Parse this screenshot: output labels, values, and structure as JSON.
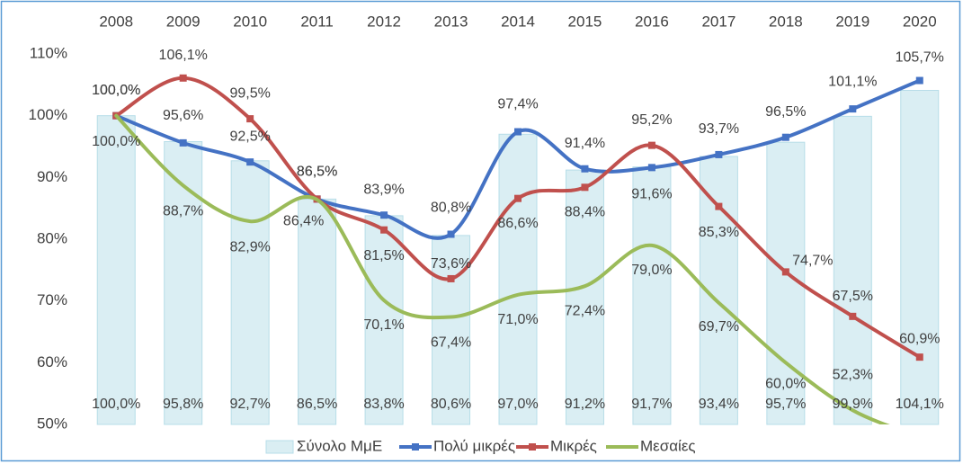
{
  "chart_data": {
    "type": "bar-line",
    "categories": [
      "2008",
      "2009",
      "2010",
      "2011",
      "2012",
      "2013",
      "2014",
      "2015",
      "2016",
      "2017",
      "2018",
      "2019",
      "2020"
    ],
    "ylim": [
      50,
      110
    ],
    "yticks": [
      {
        "value": 50,
        "label": "50%"
      },
      {
        "value": 60,
        "label": "60%"
      },
      {
        "value": 70,
        "label": "70%"
      },
      {
        "value": 80,
        "label": "80%"
      },
      {
        "value": 90,
        "label": "90%"
      },
      {
        "value": 100,
        "label": "100%"
      },
      {
        "value": 110,
        "label": "110%"
      }
    ],
    "legend": "bottom",
    "series": [
      {
        "name": "Σύνολο ΜμΕ",
        "type": "bar",
        "color": "#daeef3",
        "values": [
          100.0,
          95.8,
          92.7,
          86.5,
          83.8,
          80.6,
          97.0,
          91.2,
          91.7,
          93.4,
          95.7,
          99.9,
          104.1
        ],
        "value_labels": [
          "100,0%",
          "95,8%",
          "92,7%",
          "86,5%",
          "83,8%",
          "80,6%",
          "97,0%",
          "91,2%",
          "91,7%",
          "93,4%",
          "95,7%",
          "99,9%",
          "104,1%"
        ]
      },
      {
        "name": "Πολύ μικρές",
        "type": "line",
        "color": "#4472c4",
        "values": [
          100.0,
          95.6,
          92.5,
          86.5,
          83.9,
          80.8,
          97.4,
          91.4,
          91.6,
          93.7,
          96.5,
          101.1,
          105.7
        ],
        "value_labels": [
          "100,0%",
          "95,6%",
          "92,5%",
          "86,5%",
          "83,9%",
          "80,8%",
          "97,4%",
          "91,4%",
          "91,6%",
          "93,7%",
          "96,5%",
          "101,1%",
          "105,7%"
        ]
      },
      {
        "name": "Μικρές",
        "type": "line",
        "color": "#c0504d",
        "values": [
          100.0,
          106.1,
          99.5,
          86.5,
          81.5,
          73.6,
          86.6,
          88.4,
          95.2,
          85.3,
          74.7,
          67.5,
          60.9
        ],
        "value_labels": [
          "100,0%",
          "106,1%",
          "99,5%",
          "86,5%",
          "81,5%",
          "73,6%",
          "86,6%",
          "88,4%",
          "95,2%",
          "85,3%",
          "74,7%",
          "67,5%",
          "60,9%"
        ]
      },
      {
        "name": "Μεσαίες",
        "type": "line",
        "color": "#9bbb59",
        "values": [
          100.0,
          88.7,
          82.9,
          86.4,
          70.1,
          67.4,
          71.0,
          72.4,
          79.0,
          69.7,
          60.0,
          52.3,
          48.0
        ],
        "value_labels": [
          "100,0%",
          "88,7%",
          "82,9%",
          "86,4%",
          "70,1%",
          "67,4%",
          "71,0%",
          "72,4%",
          "79,0%",
          "69,7%",
          "60,0%",
          "52,3%",
          null
        ]
      }
    ]
  }
}
